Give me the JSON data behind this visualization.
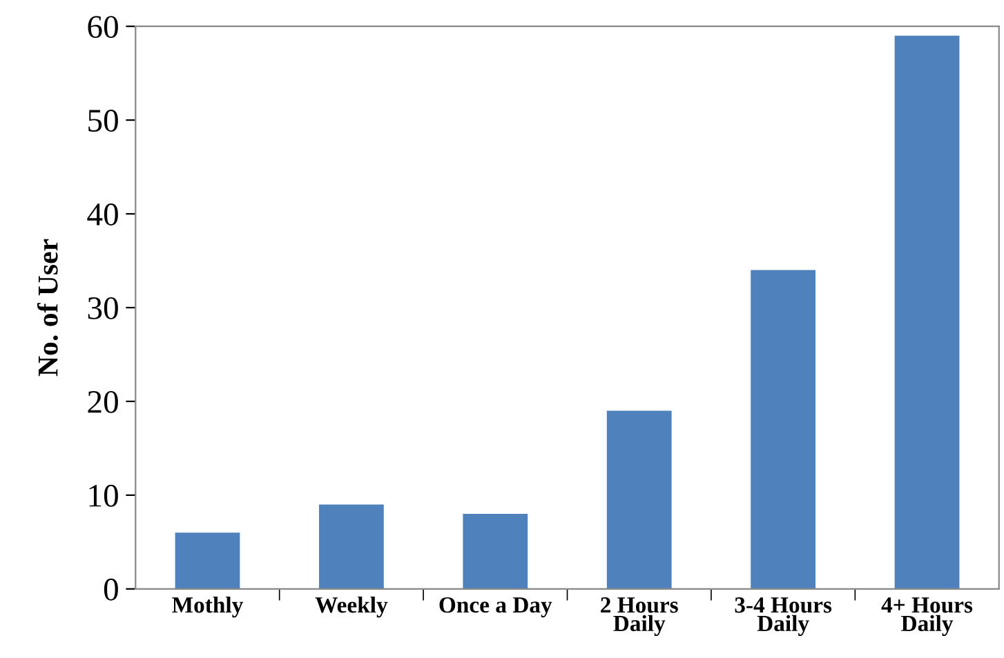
{
  "chart_data": {
    "type": "bar",
    "ylabel": "No. of User",
    "categories": [
      "Mothly",
      "Weekly",
      "Once a Day",
      "2 Hours\nDaily",
      "3-4 Hours\nDaily",
      "4+ Hours\nDaily"
    ],
    "values": [
      6,
      9,
      8,
      19,
      34,
      59
    ],
    "color": "#4f81bd",
    "ylim": [
      0,
      60
    ],
    "yticks": [
      0,
      10,
      20,
      30,
      40,
      50,
      60
    ],
    "grid": false,
    "legend": false
  }
}
